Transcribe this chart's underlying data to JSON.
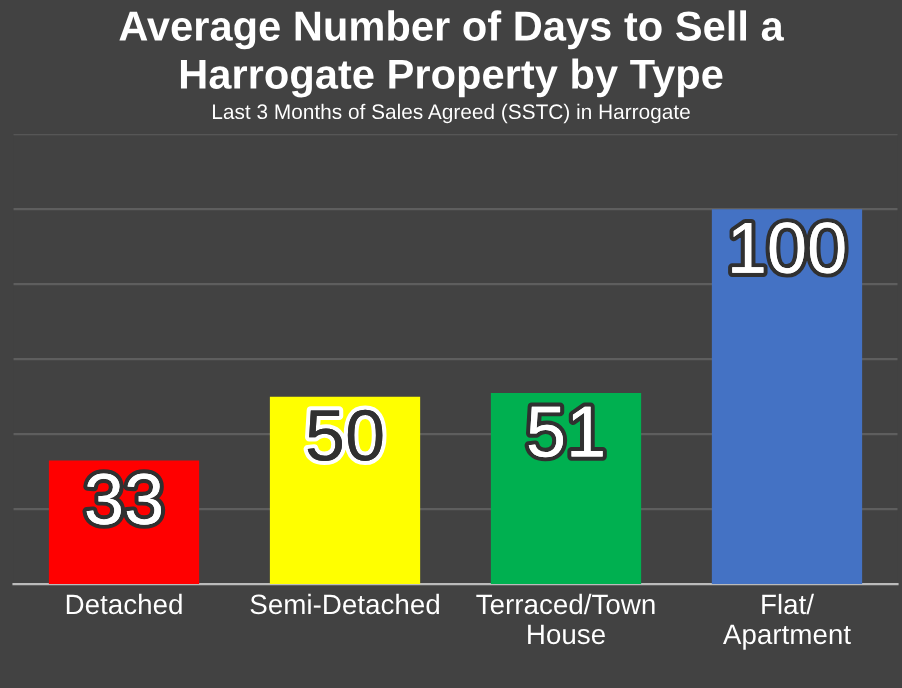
{
  "chart_data": {
    "type": "bar",
    "title": "Average Number of Days to Sell a\nHarrogate Property by Type",
    "subtitle": "Last 3 Months of Sales Agreed (SSTC) in Harrogate",
    "categories": [
      "Detached",
      "Semi-Detached",
      "Terraced/Town\nHouse",
      "Flat/\nApartment"
    ],
    "values": [
      33,
      50,
      51,
      100
    ],
    "colors": [
      "#ff0000",
      "#ffff00",
      "#00b050",
      "#4472c4"
    ],
    "ylim": [
      0,
      120
    ],
    "yticks": [
      {
        "value": 0,
        "label": null
      },
      {
        "value": 20,
        "label": null
      },
      {
        "value": 40,
        "label": null
      },
      {
        "value": 60,
        "label": null
      },
      {
        "value": 80,
        "label": null
      },
      {
        "value": 100,
        "label": null
      },
      {
        "value": 120,
        "label": null
      }
    ],
    "grid": "y",
    "tick_labels": "x",
    "data_labels": true
  }
}
